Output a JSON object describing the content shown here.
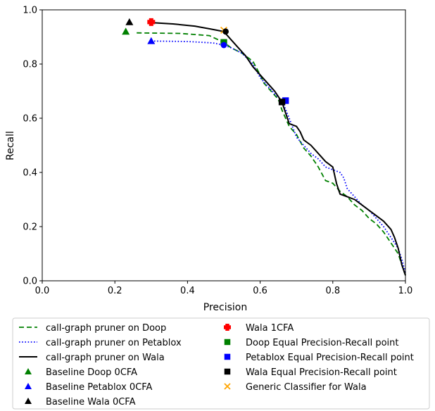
{
  "chart_data": {
    "type": "line",
    "xlabel": "Precision",
    "ylabel": "Recall",
    "xlim": [
      0.0,
      1.0
    ],
    "ylim": [
      0.0,
      1.0
    ],
    "xticks": [
      "0.0",
      "0.2",
      "0.4",
      "0.6",
      "0.8",
      "1.0"
    ],
    "yticks": [
      "0.0",
      "0.2",
      "0.4",
      "0.6",
      "0.8",
      "1.0"
    ],
    "grid": false,
    "legend_position": "bottom",
    "series": [
      {
        "name": "call-graph pruner on Doop",
        "color": "#008000",
        "style": "dashed",
        "x": [
          0.26,
          0.38,
          0.46,
          0.5,
          0.52,
          0.55,
          0.58,
          0.6,
          0.61,
          0.63,
          0.65,
          0.66,
          0.68,
          0.7,
          0.72,
          0.74,
          0.76,
          0.78,
          0.8,
          0.82,
          0.84,
          0.86,
          0.88,
          0.9,
          0.92,
          0.94,
          0.96,
          0.98,
          0.99,
          1.0
        ],
        "y": [
          0.915,
          0.913,
          0.905,
          0.88,
          0.86,
          0.84,
          0.81,
          0.76,
          0.73,
          0.7,
          0.67,
          0.63,
          0.57,
          0.54,
          0.49,
          0.46,
          0.42,
          0.37,
          0.36,
          0.33,
          0.31,
          0.28,
          0.26,
          0.23,
          0.21,
          0.18,
          0.14,
          0.1,
          0.06,
          0.02
        ]
      },
      {
        "name": "call-graph pruner on Petablox",
        "color": "#0000ff",
        "style": "dotted",
        "x": [
          0.3,
          0.4,
          0.47,
          0.5,
          0.52,
          0.55,
          0.58,
          0.6,
          0.62,
          0.64,
          0.66,
          0.68,
          0.7,
          0.72,
          0.74,
          0.76,
          0.78,
          0.82,
          0.83,
          0.84,
          0.86,
          0.88,
          0.9,
          0.92,
          0.94,
          0.96,
          0.98,
          0.99,
          1.0
        ],
        "y": [
          0.885,
          0.883,
          0.878,
          0.87,
          0.86,
          0.84,
          0.8,
          0.75,
          0.72,
          0.69,
          0.665,
          0.6,
          0.53,
          0.5,
          0.47,
          0.45,
          0.42,
          0.4,
          0.38,
          0.34,
          0.31,
          0.28,
          0.26,
          0.23,
          0.2,
          0.16,
          0.12,
          0.08,
          0.03
        ]
      },
      {
        "name": "call-graph pruner on Wala",
        "color": "#000000",
        "style": "solid",
        "x": [
          0.3,
          0.36,
          0.42,
          0.46,
          0.48,
          0.5,
          0.52,
          0.54,
          0.56,
          0.58,
          0.6,
          0.62,
          0.64,
          0.66,
          0.67,
          0.68,
          0.7,
          0.71,
          0.72,
          0.74,
          0.76,
          0.78,
          0.8,
          0.81,
          0.82,
          0.84,
          0.86,
          0.88,
          0.9,
          0.92,
          0.94,
          0.96,
          0.97,
          0.98,
          0.99,
          1.0
        ],
        "y": [
          0.953,
          0.948,
          0.94,
          0.93,
          0.925,
          0.92,
          0.89,
          0.86,
          0.83,
          0.79,
          0.76,
          0.73,
          0.7,
          0.66,
          0.62,
          0.58,
          0.57,
          0.55,
          0.52,
          0.5,
          0.47,
          0.44,
          0.42,
          0.36,
          0.32,
          0.31,
          0.3,
          0.28,
          0.26,
          0.24,
          0.22,
          0.19,
          0.16,
          0.12,
          0.06,
          0.02
        ]
      }
    ],
    "points": [
      {
        "name": "Baseline Doop 0CFA",
        "color": "#008000",
        "marker": "triangle",
        "x": 0.23,
        "y": 0.92
      },
      {
        "name": "Baseline Petablox 0CFA",
        "color": "#0000ff",
        "marker": "triangle",
        "x": 0.3,
        "y": 0.885
      },
      {
        "name": "Baseline Wala 0CFA",
        "color": "#000000",
        "marker": "triangle",
        "x": 0.24,
        "y": 0.955
      },
      {
        "name": "Wala 1CFA",
        "color": "#ff0000",
        "marker": "plus",
        "x": 0.3,
        "y": 0.955
      },
      {
        "name": "Doop Equal Precision-Recall point",
        "color": "#008000",
        "marker": "square",
        "x": 0.5,
        "y": 0.88
      },
      {
        "name": "Petablox Equal Precision-Recall point",
        "color": "#0000ff",
        "marker": "square",
        "x": 0.67,
        "y": 0.665
      },
      {
        "name": "Wala Equal Precision-Recall point",
        "color": "#000000",
        "marker": "square",
        "x": 0.66,
        "y": 0.66
      },
      {
        "name": "Generic Classifier for Wala",
        "color": "#ffa500",
        "marker": "x",
        "x": 0.5,
        "y": 0.925
      }
    ],
    "extra_markers": [
      {
        "color": "#0000ff",
        "marker": "circle",
        "x": 0.5,
        "y": 0.87
      },
      {
        "color": "#000000",
        "marker": "circle",
        "x": 0.505,
        "y": 0.92
      }
    ]
  }
}
